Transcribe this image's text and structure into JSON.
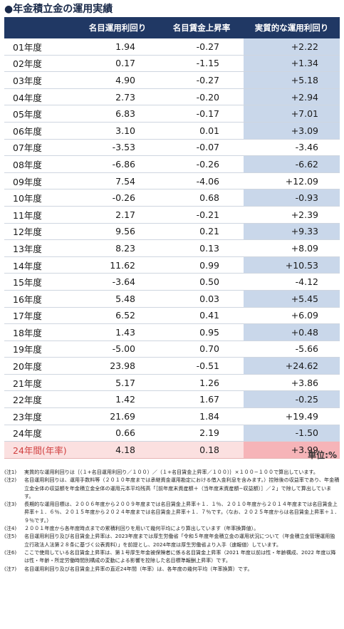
{
  "title": "●年金積立金の運用実績",
  "table": {
    "headers": [
      "",
      "名目運用利回り",
      "名目賃金上昇率",
      "実質的な運用利回り"
    ],
    "rows": [
      {
        "year": "01年度",
        "nominal_return": "1.94",
        "wage_growth": "-0.27",
        "real_return": "+2.22",
        "highlight": true
      },
      {
        "year": "02年度",
        "nominal_return": "0.17",
        "wage_growth": "-1.15",
        "real_return": "+1.34",
        "highlight": true
      },
      {
        "year": "03年度",
        "nominal_return": "4.90",
        "wage_growth": "-0.27",
        "real_return": "+5.18",
        "highlight": true
      },
      {
        "year": "04年度",
        "nominal_return": "2.73",
        "wage_growth": "-0.20",
        "real_return": "+2.94",
        "highlight": true
      },
      {
        "year": "05年度",
        "nominal_return": "6.83",
        "wage_growth": "-0.17",
        "real_return": "+7.01",
        "highlight": true
      },
      {
        "year": "06年度",
        "nominal_return": "3.10",
        "wage_growth": "0.01",
        "real_return": "+3.09",
        "highlight": true
      },
      {
        "year": "07年度",
        "nominal_return": "-3.53",
        "wage_growth": "-0.07",
        "real_return": "-3.46",
        "highlight": false
      },
      {
        "year": "08年度",
        "nominal_return": "-6.86",
        "wage_growth": "-0.26",
        "real_return": "-6.62",
        "highlight": true
      },
      {
        "year": "09年度",
        "nominal_return": "7.54",
        "wage_growth": "-4.06",
        "real_return": "+12.09",
        "highlight": false
      },
      {
        "year": "10年度",
        "nominal_return": "-0.26",
        "wage_growth": "0.68",
        "real_return": "-0.93",
        "highlight": true
      },
      {
        "year": "11年度",
        "nominal_return": "2.17",
        "wage_growth": "-0.21",
        "real_return": "+2.39",
        "highlight": false
      },
      {
        "year": "12年度",
        "nominal_return": "9.56",
        "wage_growth": "0.21",
        "real_return": "+9.33",
        "highlight": true
      },
      {
        "year": "13年度",
        "nominal_return": "8.23",
        "wage_growth": "0.13",
        "real_return": "+8.09",
        "highlight": false
      },
      {
        "year": "14年度",
        "nominal_return": "11.62",
        "wage_growth": "0.99",
        "real_return": "+10.53",
        "highlight": true
      },
      {
        "year": "15年度",
        "nominal_return": "-3.64",
        "wage_growth": "0.50",
        "real_return": "-4.12",
        "highlight": false
      },
      {
        "year": "16年度",
        "nominal_return": "5.48",
        "wage_growth": "0.03",
        "real_return": "+5.45",
        "highlight": true
      },
      {
        "year": "17年度",
        "nominal_return": "6.52",
        "wage_growth": "0.41",
        "real_return": "+6.09",
        "highlight": false
      },
      {
        "year": "18年度",
        "nominal_return": "1.43",
        "wage_growth": "0.95",
        "real_return": "+0.48",
        "highlight": true
      },
      {
        "year": "19年度",
        "nominal_return": "-5.00",
        "wage_growth": "0.70",
        "real_return": "-5.66",
        "highlight": false
      },
      {
        "year": "20年度",
        "nominal_return": "23.98",
        "wage_growth": "-0.51",
        "real_return": "+24.62",
        "highlight": true
      },
      {
        "year": "21年度",
        "nominal_return": "5.17",
        "wage_growth": "1.26",
        "real_return": "+3.86",
        "highlight": false
      },
      {
        "year": "22年度",
        "nominal_return": "1.42",
        "wage_growth": "1.67",
        "real_return": "-0.25",
        "highlight": true
      },
      {
        "year": "23年度",
        "nominal_return": "21.69",
        "wage_growth": "1.84",
        "real_return": "+19.49",
        "highlight": false
      },
      {
        "year": "24年度",
        "nominal_return": "0.66",
        "wage_growth": "2.19",
        "real_return": "-1.50",
        "highlight": true
      }
    ],
    "total": {
      "year": "24年間(年率)",
      "nominal_return": "4.18",
      "wage_growth": "0.18",
      "real_return": "+3.99"
    }
  },
  "unit": "単位:%",
  "notes": [
    {
      "label": "(注1)",
      "text": "実質的な運用利回りは｛（１+名目運用利回り／１００）／（１+名目賃金上昇率／１００）｝×１００−１００で算出しています。"
    },
    {
      "label": "(注2)",
      "text": "名目運用利回りは、運用手数料等（２０１０年度までは承継資金運用勘定における借入金利息を含みます。）控除後の収益率であり、年金積立金全体の収益額を年金積立金全体の運用元本平均残高「［前年度末資産額＋（当年度末資産額−収益額）］／２」で除して算出しています。"
    },
    {
      "label": "(注3)",
      "text": "長期的な運用目標は、２００６年度から２００９年度までは名目賃金上昇率＋１．１％、２０１０年度から２０１４年度までは名目賃金上昇率＋１．６％、２０１５年度から２０２４年度までは名目賃金上昇率＋１．７％です。（なお、２０２５年度からは名目賃金上昇率＋１．９％です。）"
    },
    {
      "label": "(注4)",
      "text": "２００１年度から各年度時点までの累積利回りを用いて幾何平均により算出しています（年率換算値）。"
    },
    {
      "label": "(注5)",
      "text": "名目運用利回り及び名目賃金上昇率は、2023年度までは厚生労働省「令和５年度年金積立金の運用状況について（年金積立金管理運用独立行政法人法第２８条に基づく公表資料）」を前提とし、2024年度は厚生労働省より入手（速報値）しています。"
    },
    {
      "label": "(注6)",
      "text": "ここで使用している名目賃金上昇率は、第１号厚生年金被保険者に係る名目賃金上昇率（2021 年度以前は性・年齢構成、2022 年度以降は性・年齢・所定労働時間別構成の変動による影響を控除した名目標準報酬上昇率）です。"
    },
    {
      "label": "(注7)",
      "text": "名目運用利回り及び名目賃金上昇率の直近24年間（年率）は、各年度の幾何平均（年率換算）です。"
    }
  ],
  "colors": {
    "header_bg": "#203864",
    "highlight": "#c9d7ea",
    "total_bg": "#fbe0e0",
    "total_highlight": "#f6b4b8",
    "total_label": "#d04040"
  }
}
